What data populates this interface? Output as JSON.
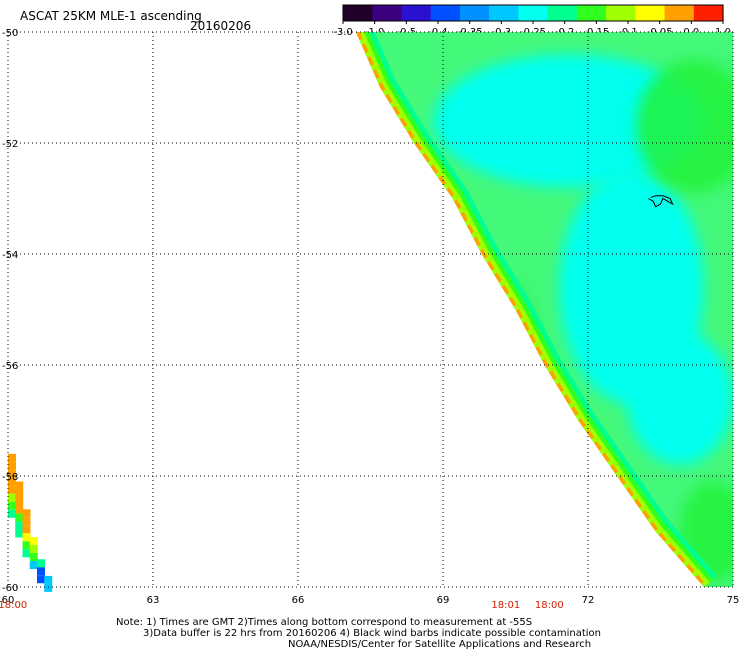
{
  "chart_data": {
    "type": "heatmap",
    "title": "ASCAT 25KM MLE-1 ascending",
    "date": "20160206",
    "xlabel": "",
    "ylabel": "",
    "xlim": [
      60,
      75
    ],
    "ylim": [
      -60,
      -50
    ],
    "x_ticks": [
      "60",
      "63",
      "66",
      "69",
      "72",
      "75"
    ],
    "y_ticks": [
      "-50",
      "-52",
      "-54",
      "-56",
      "-58",
      "-60"
    ],
    "grid": true,
    "colorbar": {
      "tick_labels": [
        "-3.0",
        "-1.0",
        "-0.5",
        "-0.4",
        "-0.35",
        "-0.3",
        "-0.25",
        "-0.2",
        "-0.15",
        "-0.1",
        "-0.05",
        "0.0",
        "1.0"
      ],
      "colors": [
        "#200028",
        "#3a0080",
        "#2a10d0",
        "#0050ff",
        "#0090ff",
        "#00c8ff",
        "#00ffee",
        "#00ff90",
        "#30ff20",
        "#a0ff00",
        "#ffff00",
        "#ffa000",
        "#ff2000"
      ]
    },
    "swath": {
      "edge": [
        [
          67.2,
          -50.0
        ],
        [
          67.7,
          -51.0
        ],
        [
          68.4,
          -52.0
        ],
        [
          69.2,
          -53.0
        ],
        [
          69.8,
          -54.0
        ],
        [
          70.5,
          -55.0
        ],
        [
          71.1,
          -56.0
        ],
        [
          71.8,
          -57.0
        ],
        [
          72.6,
          -58.0
        ],
        [
          73.4,
          -59.0
        ],
        [
          74.1,
          -59.7
        ],
        [
          74.4,
          -60.0
        ],
        [
          75,
          -60
        ],
        [
          75,
          -50
        ]
      ],
      "edge_color": "#ffa000",
      "inner_colors": [
        "#a0ff00",
        "#30ff20",
        "#00ff90"
      ],
      "interior_color": "#44f87a"
    },
    "cyan_regions": [
      {
        "center": [
          71.6,
          -51.6
        ],
        "radii": [
          2.8,
          1.2
        ]
      },
      {
        "center": [
          72.9,
          -54.6
        ],
        "radii": [
          1.5,
          2.1
        ]
      },
      {
        "center": [
          73.9,
          -56.6
        ],
        "radii": [
          1.1,
          1.2
        ]
      }
    ],
    "green_regions": [
      {
        "center": [
          74.2,
          -51.7
        ],
        "radii": [
          1.2,
          1.2
        ]
      },
      {
        "center": [
          74.6,
          -59.0
        ],
        "radii": [
          0.7,
          0.9
        ]
      },
      {
        "center": [
          70.1,
          -55.5
        ],
        "radii": [
          0.8,
          1.1
        ]
      }
    ],
    "corner_swath": {
      "columns": [
        {
          "x": 60.0,
          "top": -57.6,
          "cells": [
            "#ffa000",
            "#ffa000",
            "#ffa000",
            "#ffa000",
            "#ffa000",
            "#a0ff00",
            "#30ff20",
            "#00ff90"
          ]
        },
        {
          "x": 60.15,
          "top": -58.1,
          "cells": [
            "#ffa000",
            "#ffa000",
            "#ffa000",
            "#ffa000",
            "#30ff20",
            "#00ff90",
            "#00ff90"
          ]
        },
        {
          "x": 60.3,
          "top": -58.6,
          "cells": [
            "#ffa000",
            "#ffa000",
            "#ffa000",
            "#ffff00",
            "#30ff20",
            "#00ff90"
          ]
        },
        {
          "x": 60.45,
          "top": -59.1,
          "cells": [
            "#ffff00",
            "#a0ff00",
            "#30ff20",
            "#00c8ff"
          ]
        },
        {
          "x": 60.6,
          "top": -59.5,
          "cells": [
            "#00ff90",
            "#0050ff",
            "#0050ff"
          ]
        },
        {
          "x": 60.75,
          "top": -59.8,
          "cells": [
            "#00c8ff",
            "#00c8ff"
          ]
        }
      ]
    },
    "contamination_barb": [
      [
        73.25,
        -53.0
      ],
      [
        73.35,
        -53.05
      ],
      [
        73.4,
        -53.15
      ],
      [
        73.5,
        -53.1
      ],
      [
        73.55,
        -53.0
      ],
      [
        73.65,
        -53.05
      ],
      [
        73.75,
        -53.1
      ],
      [
        73.7,
        -53.0
      ],
      [
        73.55,
        -52.95
      ],
      [
        73.4,
        -52.95
      ],
      [
        73.3,
        -52.98
      ]
    ],
    "time_labels": [
      {
        "text": "18:00",
        "x": 60.1
      },
      {
        "text": "18:01",
        "x": 70.3
      },
      {
        "text": "18:00",
        "x": 71.2
      }
    ],
    "notes": [
      "Note: 1) Times are GMT 2)Times along bottom correspond to measurement at -55S",
      "3)Data buffer is 22 hrs from 20160206 4) Black wind barbs indicate possible contamination",
      "NOAA/NESDIS/Center for Satellite Applications and Research"
    ]
  }
}
